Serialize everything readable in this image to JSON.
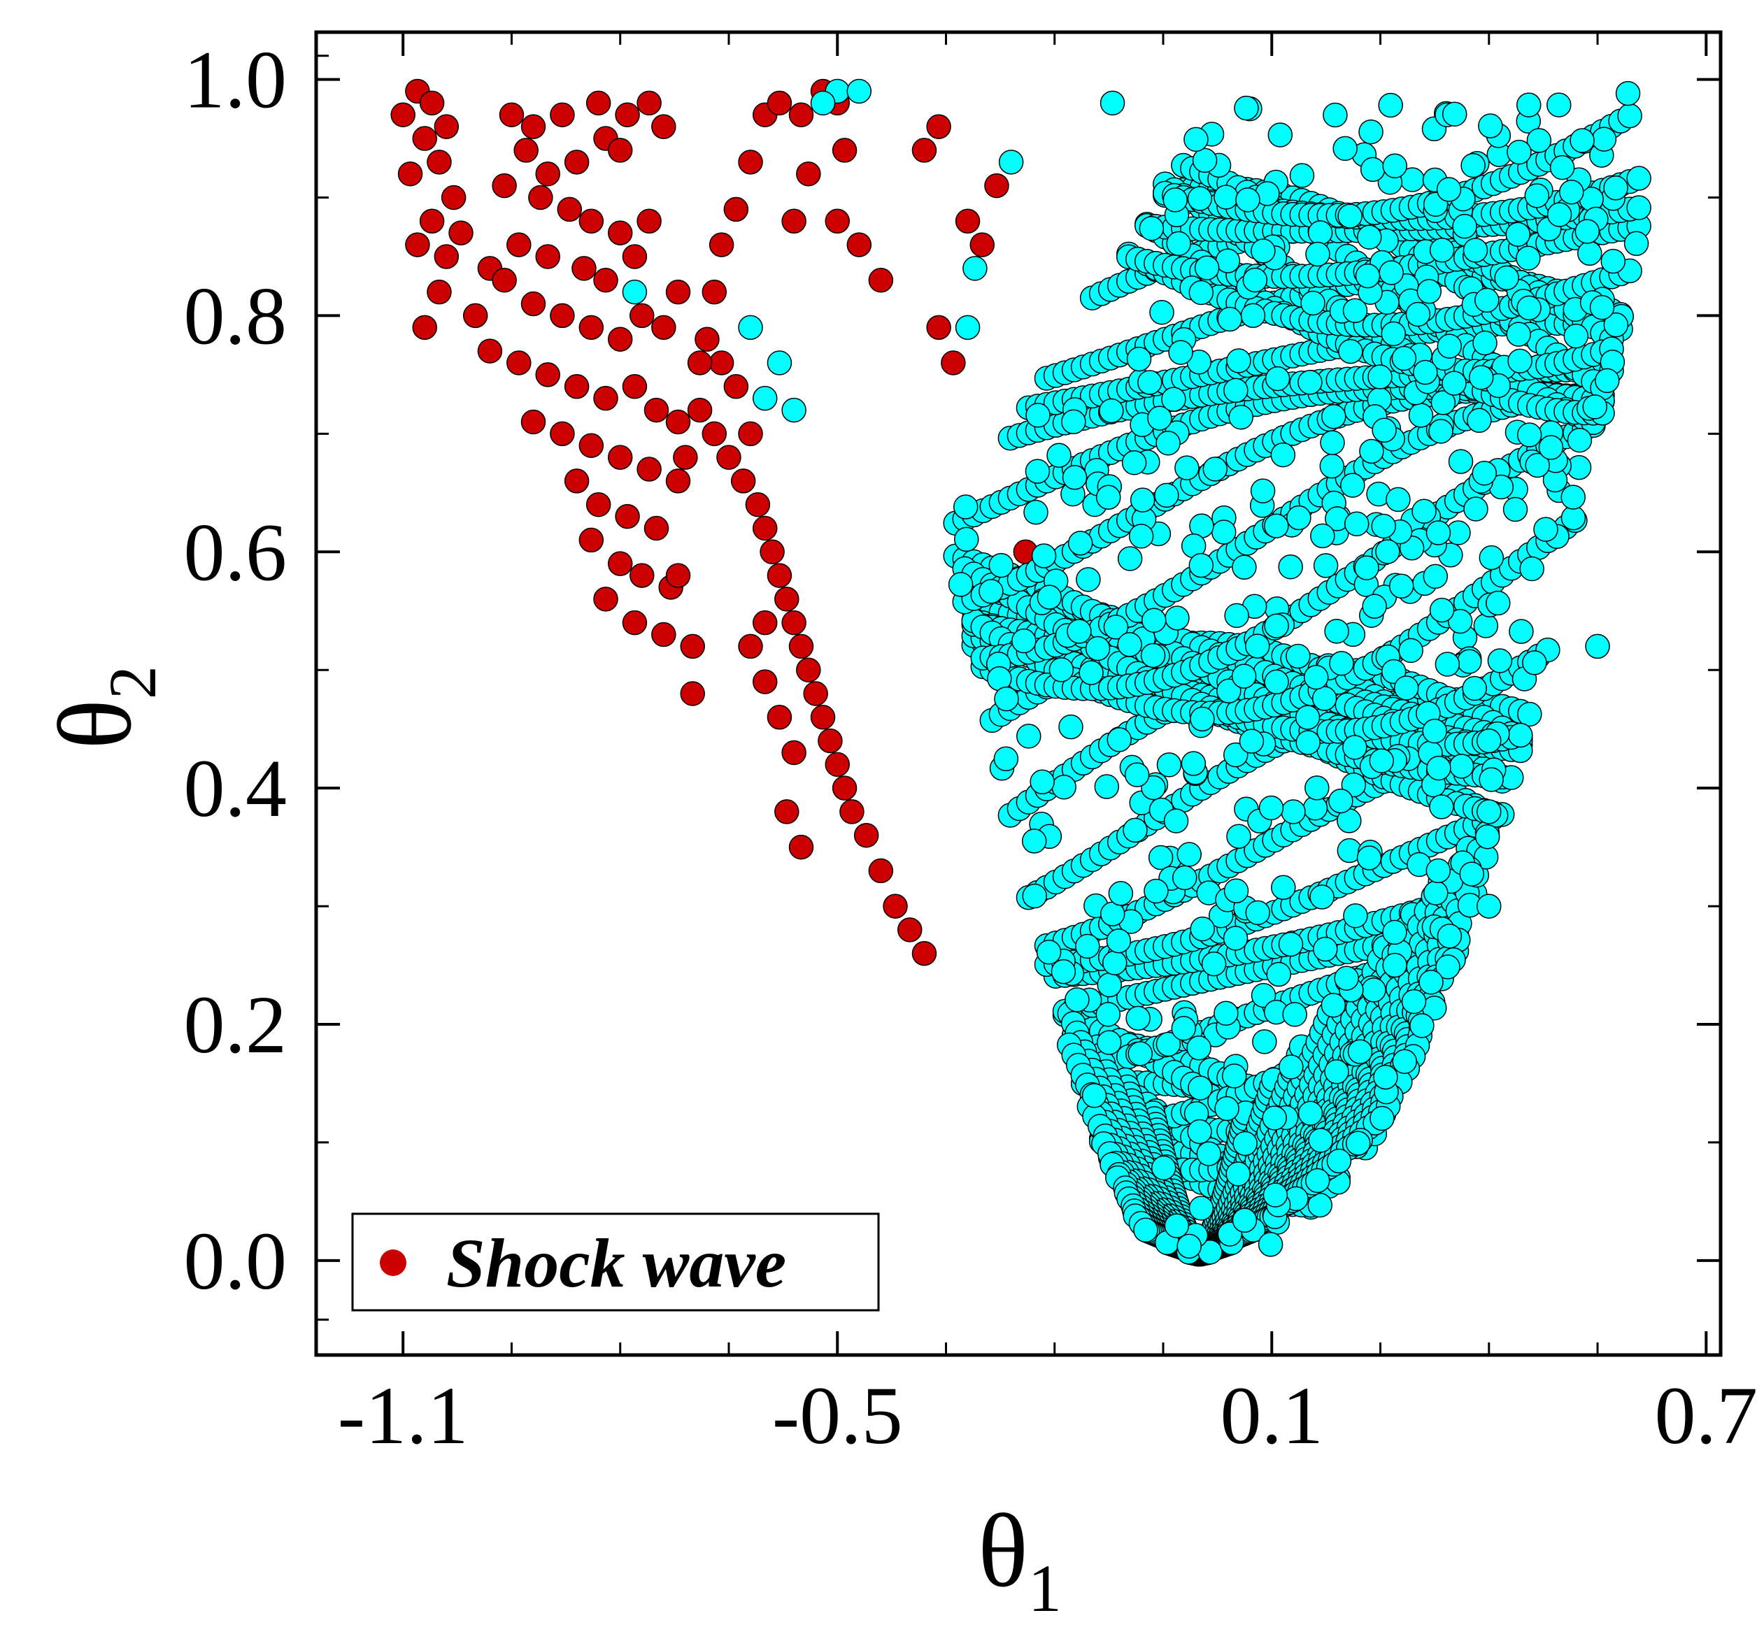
{
  "chart_data": {
    "type": "scatter",
    "title": "",
    "xlabel": {
      "symbol": "θ",
      "subscript": "1"
    },
    "ylabel": {
      "symbol": "θ",
      "subscript": "2"
    },
    "xlim": [
      -1.22,
      0.72
    ],
    "ylim": [
      -0.08,
      1.04
    ],
    "xticks": [
      -1.1,
      -0.5,
      0.1,
      0.7
    ],
    "xtick_labels": [
      "-1.1",
      "-0.5",
      "0.1",
      "0.7"
    ],
    "yticks": [
      0.0,
      0.2,
      0.4,
      0.6,
      0.8,
      1.0
    ],
    "ytick_labels": [
      "0.0",
      "0.2",
      "0.4",
      "0.6",
      "0.8",
      "1.0"
    ],
    "grid": false,
    "legend": {
      "position": "bottom-left",
      "entries": [
        "Shock wave"
      ]
    },
    "series": [
      {
        "name": "Shock wave",
        "color": "#cc0000",
        "edge": "#000000",
        "in_legend": true,
        "points": [
          [
            -1.08,
            0.99
          ],
          [
            -1.06,
            0.98
          ],
          [
            -1.04,
            0.96
          ],
          [
            -1.1,
            0.97
          ],
          [
            -1.07,
            0.95
          ],
          [
            -1.05,
            0.93
          ],
          [
            -1.09,
            0.92
          ],
          [
            -1.03,
            0.9
          ],
          [
            -1.06,
            0.88
          ],
          [
            -1.02,
            0.87
          ],
          [
            -1.08,
            0.86
          ],
          [
            -1.04,
            0.85
          ],
          [
            -0.98,
            0.84
          ],
          [
            -1.05,
            0.82
          ],
          [
            -1.0,
            0.8
          ],
          [
            -1.07,
            0.79
          ],
          [
            -0.95,
            0.97
          ],
          [
            -0.92,
            0.96
          ],
          [
            -0.88,
            0.97
          ],
          [
            -0.83,
            0.98
          ],
          [
            -0.79,
            0.97
          ],
          [
            -0.76,
            0.98
          ],
          [
            -0.74,
            0.96
          ],
          [
            -0.93,
            0.94
          ],
          [
            -0.9,
            0.92
          ],
          [
            -0.86,
            0.93
          ],
          [
            -0.82,
            0.95
          ],
          [
            -0.8,
            0.94
          ],
          [
            -0.96,
            0.91
          ],
          [
            -0.91,
            0.9
          ],
          [
            -0.87,
            0.89
          ],
          [
            -0.84,
            0.88
          ],
          [
            -0.8,
            0.87
          ],
          [
            -0.76,
            0.88
          ],
          [
            -0.94,
            0.86
          ],
          [
            -0.9,
            0.85
          ],
          [
            -0.85,
            0.84
          ],
          [
            -0.82,
            0.83
          ],
          [
            -0.78,
            0.85
          ],
          [
            -0.96,
            0.83
          ],
          [
            -0.92,
            0.81
          ],
          [
            -0.88,
            0.8
          ],
          [
            -0.84,
            0.79
          ],
          [
            -0.8,
            0.78
          ],
          [
            -0.77,
            0.8
          ],
          [
            -0.74,
            0.79
          ],
          [
            -0.98,
            0.77
          ],
          [
            -0.94,
            0.76
          ],
          [
            -0.9,
            0.75
          ],
          [
            -0.86,
            0.74
          ],
          [
            -0.82,
            0.73
          ],
          [
            -0.78,
            0.74
          ],
          [
            -0.75,
            0.72
          ],
          [
            -0.72,
            0.71
          ],
          [
            -0.92,
            0.71
          ],
          [
            -0.88,
            0.7
          ],
          [
            -0.84,
            0.69
          ],
          [
            -0.8,
            0.68
          ],
          [
            -0.76,
            0.67
          ],
          [
            -0.72,
            0.66
          ],
          [
            -0.86,
            0.66
          ],
          [
            -0.83,
            0.64
          ],
          [
            -0.79,
            0.63
          ],
          [
            -0.75,
            0.62
          ],
          [
            -0.84,
            0.61
          ],
          [
            -0.8,
            0.59
          ],
          [
            -0.77,
            0.58
          ],
          [
            -0.73,
            0.57
          ],
          [
            -0.82,
            0.56
          ],
          [
            -0.78,
            0.54
          ],
          [
            -0.74,
            0.53
          ],
          [
            -0.69,
            0.72
          ],
          [
            -0.67,
            0.7
          ],
          [
            -0.65,
            0.68
          ],
          [
            -0.63,
            0.66
          ],
          [
            -0.61,
            0.64
          ],
          [
            -0.6,
            0.62
          ],
          [
            -0.59,
            0.6
          ],
          [
            -0.58,
            0.58
          ],
          [
            -0.57,
            0.56
          ],
          [
            -0.56,
            0.54
          ],
          [
            -0.55,
            0.52
          ],
          [
            -0.54,
            0.5
          ],
          [
            -0.53,
            0.48
          ],
          [
            -0.52,
            0.46
          ],
          [
            -0.51,
            0.44
          ],
          [
            -0.5,
            0.42
          ],
          [
            -0.49,
            0.4
          ],
          [
            -0.48,
            0.38
          ],
          [
            -0.46,
            0.36
          ],
          [
            -0.44,
            0.33
          ],
          [
            -0.42,
            0.3
          ],
          [
            -0.4,
            0.28
          ],
          [
            -0.38,
            0.26
          ],
          [
            -0.62,
            0.7
          ],
          [
            -0.64,
            0.74
          ],
          [
            -0.66,
            0.76
          ],
          [
            -0.68,
            0.78
          ],
          [
            -0.67,
            0.82
          ],
          [
            -0.66,
            0.86
          ],
          [
            -0.64,
            0.89
          ],
          [
            -0.62,
            0.93
          ],
          [
            -0.6,
            0.97
          ],
          [
            -0.58,
            0.98
          ],
          [
            -0.55,
            0.97
          ],
          [
            -0.52,
            0.99
          ],
          [
            -0.5,
            0.98
          ],
          [
            -0.49,
            0.94
          ],
          [
            -0.54,
            0.92
          ],
          [
            -0.56,
            0.88
          ],
          [
            -0.5,
            0.88
          ],
          [
            -0.47,
            0.86
          ],
          [
            -0.44,
            0.83
          ],
          [
            -0.38,
            0.94
          ],
          [
            -0.36,
            0.96
          ],
          [
            -0.32,
            0.88
          ],
          [
            -0.28,
            0.91
          ],
          [
            -0.3,
            0.86
          ],
          [
            -0.36,
            0.79
          ],
          [
            -0.34,
            0.76
          ],
          [
            -0.6,
            0.49
          ],
          [
            -0.58,
            0.46
          ],
          [
            -0.56,
            0.43
          ],
          [
            -0.57,
            0.38
          ],
          [
            -0.55,
            0.35
          ],
          [
            -0.62,
            0.52
          ],
          [
            -0.6,
            0.54
          ],
          [
            -0.7,
            0.48
          ],
          [
            -0.7,
            0.52
          ],
          [
            -0.72,
            0.58
          ],
          [
            -0.71,
            0.68
          ],
          [
            -0.69,
            0.76
          ],
          [
            -0.72,
            0.82
          ],
          [
            -0.24,
            0.6
          ],
          [
            -0.22,
            0.58
          ],
          [
            -0.26,
            0.56
          ]
        ]
      },
      {
        "name": "cyan",
        "color": "#00ffff",
        "edge": "#000000",
        "in_legend": false,
        "points": []
      }
    ]
  }
}
